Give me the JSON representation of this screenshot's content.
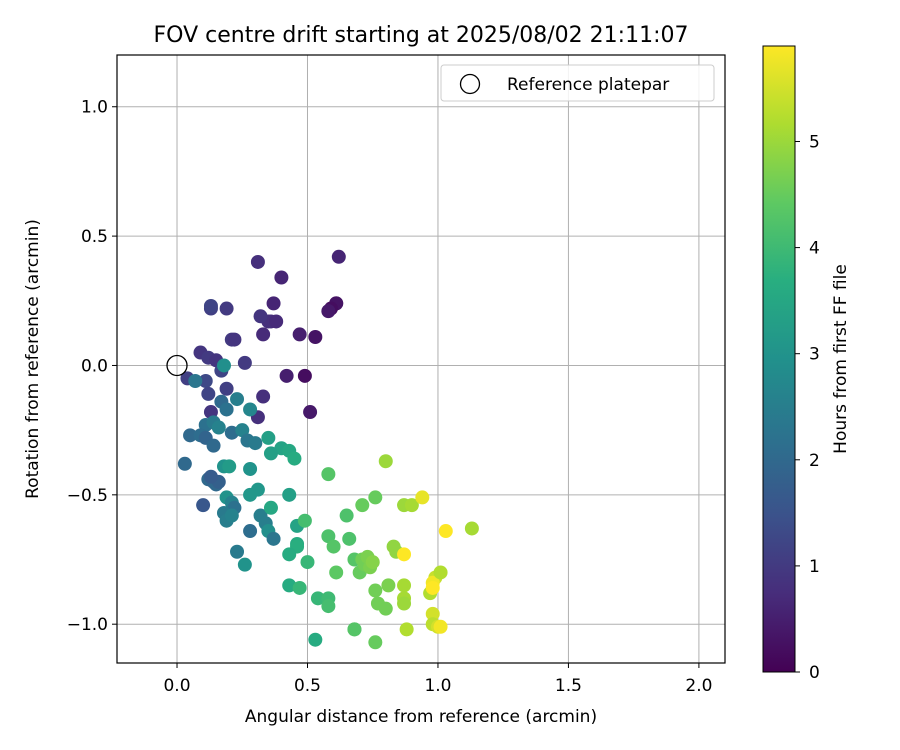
{
  "chart_data": {
    "type": "scatter",
    "title": "FOV centre drift starting at 2025/08/02 21:11:07",
    "xlabel": "Angular distance from reference (arcmin)",
    "ylabel": "Rotation from reference (arcmin)",
    "xlim": [
      -0.23,
      2.1
    ],
    "ylim": [
      -1.15,
      1.2
    ],
    "xticks": [
      0.0,
      0.5,
      1.0,
      1.5,
      2.0
    ],
    "xtick_labels": [
      "0.0",
      "0.5",
      "1.0",
      "1.5",
      "2.0"
    ],
    "yticks": [
      -1.0,
      -0.5,
      0.0,
      0.5,
      1.0
    ],
    "ytick_labels": [
      "−1.0",
      "−0.5",
      "0.0",
      "0.5",
      "1.0"
    ],
    "grid": true,
    "legend": {
      "placement": "top-right",
      "entries": [
        "Reference platepar"
      ]
    },
    "colormap": "viridis",
    "colorbar": {
      "label": "Hours from first FF file",
      "range": [
        0,
        5.9
      ],
      "ticks": [
        0,
        1,
        2,
        3,
        4,
        5
      ],
      "tick_labels": [
        "0",
        "1",
        "2",
        "3",
        "4",
        "5"
      ]
    },
    "reference_point": {
      "x": 0.0,
      "y": 0.0
    },
    "series": [
      {
        "marker": "filled-circle-colored-by-hours",
        "points": [
          [
            0.62,
            0.42,
            0.6
          ],
          [
            0.61,
            0.24,
            0.2
          ],
          [
            0.61,
            0.24,
            0.3
          ],
          [
            0.59,
            0.22,
            0.2
          ],
          [
            0.58,
            0.21,
            0.4
          ],
          [
            0.53,
            0.11,
            0.3
          ],
          [
            0.47,
            0.12,
            0.5
          ],
          [
            0.4,
            0.34,
            0.6
          ],
          [
            0.31,
            0.4,
            0.8
          ],
          [
            0.37,
            0.24,
            0.6
          ],
          [
            0.36,
            0.17,
            0.7
          ],
          [
            0.35,
            0.17,
            0.8
          ],
          [
            0.38,
            0.17,
            0.7
          ],
          [
            0.32,
            0.19,
            0.9
          ],
          [
            0.33,
            0.12,
            0.7
          ],
          [
            0.19,
            0.22,
            1.0
          ],
          [
            0.13,
            0.22,
            1.1
          ],
          [
            0.13,
            0.23,
            1.2
          ],
          [
            0.21,
            0.1,
            1.0
          ],
          [
            0.22,
            0.1,
            0.9
          ],
          [
            0.09,
            0.05,
            0.9
          ],
          [
            0.12,
            0.03,
            1.0
          ],
          [
            0.26,
            0.01,
            1.0
          ],
          [
            0.15,
            0.02,
            0.9
          ],
          [
            0.04,
            -0.05,
            1.1
          ],
          [
            0.11,
            -0.06,
            1.3
          ],
          [
            0.17,
            -0.02,
            1.2
          ],
          [
            0.19,
            -0.09,
            1.1
          ],
          [
            0.12,
            -0.11,
            1.2
          ],
          [
            0.33,
            -0.12,
            0.8
          ],
          [
            0.42,
            -0.04,
            0.5
          ],
          [
            0.49,
            -0.04,
            0.2
          ],
          [
            0.51,
            -0.18,
            0.4
          ],
          [
            0.31,
            -0.2,
            0.8
          ],
          [
            0.13,
            -0.18,
            0.9
          ],
          [
            0.07,
            -0.06,
            2.3
          ],
          [
            0.18,
            0.0,
            2.9
          ],
          [
            0.17,
            -0.14,
            2.0
          ],
          [
            0.19,
            -0.17,
            2.2
          ],
          [
            0.23,
            -0.13,
            2.5
          ],
          [
            0.28,
            -0.17,
            2.7
          ],
          [
            0.11,
            -0.23,
            2.2
          ],
          [
            0.14,
            -0.22,
            2.4
          ],
          [
            0.16,
            -0.24,
            2.6
          ],
          [
            0.21,
            -0.26,
            2.1
          ],
          [
            0.25,
            -0.25,
            2.6
          ],
          [
            0.27,
            -0.29,
            2.3
          ],
          [
            0.3,
            -0.3,
            2.4
          ],
          [
            0.35,
            -0.28,
            3.3
          ],
          [
            0.4,
            -0.32,
            3.4
          ],
          [
            0.36,
            -0.34,
            3.3
          ],
          [
            0.43,
            -0.33,
            3.5
          ],
          [
            0.45,
            -0.36,
            3.6
          ],
          [
            0.05,
            -0.27,
            2.0
          ],
          [
            0.09,
            -0.27,
            2.1
          ],
          [
            0.11,
            -0.28,
            1.9
          ],
          [
            0.14,
            -0.31,
            2.0
          ],
          [
            0.03,
            -0.38,
            2.0
          ],
          [
            0.18,
            -0.39,
            3.0
          ],
          [
            0.2,
            -0.39,
            3.2
          ],
          [
            0.12,
            -0.44,
            2.0
          ],
          [
            0.14,
            -0.45,
            1.9
          ],
          [
            0.15,
            -0.46,
            2.0
          ],
          [
            0.16,
            -0.45,
            1.8
          ],
          [
            0.13,
            -0.43,
            1.7
          ],
          [
            0.28,
            -0.4,
            3.0
          ],
          [
            0.31,
            -0.48,
            3.1
          ],
          [
            0.28,
            -0.5,
            3.1
          ],
          [
            0.19,
            -0.51,
            3.0
          ],
          [
            0.21,
            -0.53,
            2.6
          ],
          [
            0.22,
            -0.55,
            2.2
          ],
          [
            0.18,
            -0.57,
            2.4
          ],
          [
            0.19,
            -0.6,
            2.5
          ],
          [
            0.21,
            -0.58,
            2.6
          ],
          [
            0.1,
            -0.54,
            1.6
          ],
          [
            0.32,
            -0.58,
            2.5
          ],
          [
            0.34,
            -0.61,
            2.5
          ],
          [
            0.35,
            -0.64,
            2.9
          ],
          [
            0.36,
            -0.55,
            3.5
          ],
          [
            0.37,
            -0.67,
            2.3
          ],
          [
            0.43,
            -0.5,
            3.3
          ],
          [
            0.46,
            -0.62,
            3.4
          ],
          [
            0.46,
            -0.69,
            3.6
          ],
          [
            0.46,
            -0.7,
            3.7
          ],
          [
            0.43,
            -0.73,
            3.6
          ],
          [
            0.28,
            -0.64,
            2.1
          ],
          [
            0.23,
            -0.72,
            2.4
          ],
          [
            0.26,
            -0.77,
            3.0
          ],
          [
            0.43,
            -0.85,
            3.6
          ],
          [
            0.47,
            -0.86,
            3.9
          ],
          [
            0.49,
            -0.6,
            4.1
          ],
          [
            0.5,
            -0.76,
            3.9
          ],
          [
            0.54,
            -0.9,
            3.9
          ],
          [
            0.58,
            -0.9,
            4.0
          ],
          [
            0.58,
            -0.93,
            4.1
          ],
          [
            0.53,
            -1.06,
            3.6
          ],
          [
            0.58,
            -0.42,
            4.3
          ],
          [
            0.65,
            -0.58,
            4.2
          ],
          [
            0.58,
            -0.66,
            4.2
          ],
          [
            0.6,
            -0.7,
            4.3
          ],
          [
            0.66,
            -0.67,
            4.2
          ],
          [
            0.61,
            -0.8,
            4.4
          ],
          [
            0.68,
            -0.75,
            4.3
          ],
          [
            0.7,
            -0.8,
            4.5
          ],
          [
            0.71,
            -0.75,
            4.6
          ],
          [
            0.72,
            -0.77,
            4.6
          ],
          [
            0.73,
            -0.74,
            4.7
          ],
          [
            0.74,
            -0.78,
            4.7
          ],
          [
            0.75,
            -0.76,
            4.8
          ],
          [
            0.71,
            -0.54,
            4.5
          ],
          [
            0.76,
            -0.51,
            4.5
          ],
          [
            0.8,
            -0.37,
            5.0
          ],
          [
            0.76,
            -0.87,
            4.6
          ],
          [
            0.77,
            -0.92,
            4.6
          ],
          [
            0.8,
            -0.94,
            4.6
          ],
          [
            0.81,
            -0.85,
            4.7
          ],
          [
            0.83,
            -0.7,
            4.9
          ],
          [
            0.84,
            -0.72,
            4.9
          ],
          [
            0.87,
            -0.54,
            5.0
          ],
          [
            0.9,
            -0.54,
            5.1
          ],
          [
            0.87,
            -0.73,
            5.9
          ],
          [
            0.87,
            -0.85,
            5.1
          ],
          [
            0.87,
            -0.9,
            5.1
          ],
          [
            0.87,
            -0.92,
            5.0
          ],
          [
            0.94,
            -0.51,
            5.7
          ],
          [
            0.97,
            -0.88,
            5.2
          ],
          [
            0.99,
            -0.82,
            5.4
          ],
          [
            0.98,
            -0.84,
            5.8
          ],
          [
            0.98,
            -0.86,
            5.9
          ],
          [
            1.01,
            -0.8,
            5.2
          ],
          [
            0.98,
            -0.96,
            5.5
          ],
          [
            0.98,
            -1.0,
            5.3
          ],
          [
            1.0,
            -1.01,
            5.5
          ],
          [
            1.01,
            -1.01,
            5.8
          ],
          [
            1.03,
            -0.64,
            5.9
          ],
          [
            1.13,
            -0.63,
            5.1
          ],
          [
            0.88,
            -1.02,
            5.2
          ],
          [
            0.76,
            -1.07,
            4.5
          ],
          [
            0.68,
            -1.02,
            4.4
          ],
          [
            0.68,
            -1.02,
            4.3
          ]
        ]
      }
    ]
  }
}
